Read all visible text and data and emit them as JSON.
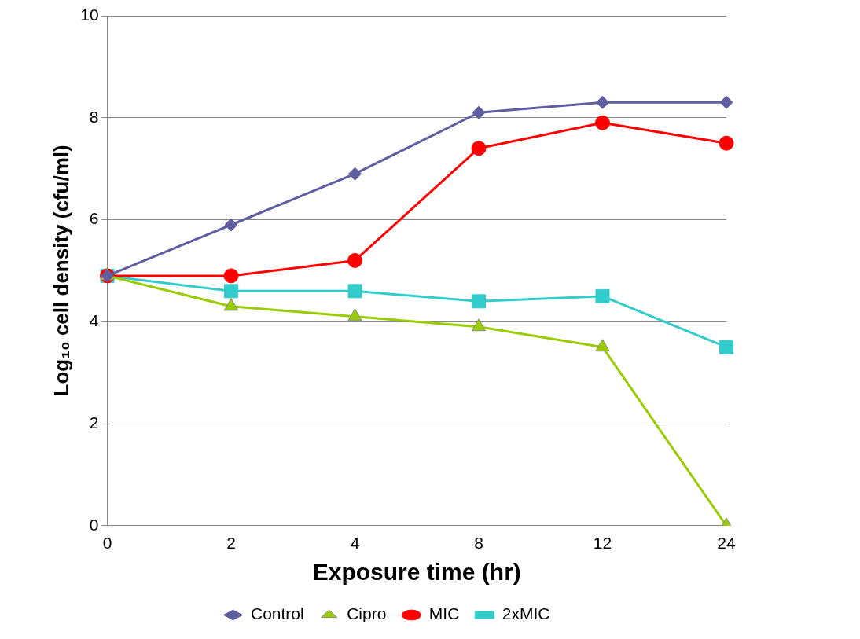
{
  "chart_data": {
    "type": "line",
    "xlabel": "Exposure time (hr)",
    "ylabel": "Log₁₀ cell density (cfu/ml)",
    "categories": [
      "0",
      "2",
      "4",
      "8",
      "12",
      "24"
    ],
    "ylim": [
      0,
      10
    ],
    "yticks": [
      0,
      2,
      4,
      6,
      8,
      10
    ],
    "grid": "y",
    "legend": "bottom",
    "line_style": "solid",
    "series": [
      {
        "name": "Control",
        "color": "#5e5ea0",
        "marker": "diamond",
        "values": [
          4.9,
          5.9,
          6.9,
          8.1,
          8.3,
          8.3
        ]
      },
      {
        "name": "Cipro",
        "color": "#99cc00",
        "marker": "triangle",
        "values": [
          4.9,
          4.3,
          4.1,
          3.9,
          3.5,
          0
        ]
      },
      {
        "name": "MIC",
        "color": "#ff0000",
        "marker": "circle",
        "values": [
          4.9,
          4.9,
          5.2,
          7.4,
          7.9,
          7.5
        ]
      },
      {
        "name": "2xMIC",
        "color": "#33cccc",
        "marker": "square",
        "values": [
          4.9,
          4.6,
          4.6,
          4.4,
          4.5,
          3.5
        ]
      }
    ]
  }
}
